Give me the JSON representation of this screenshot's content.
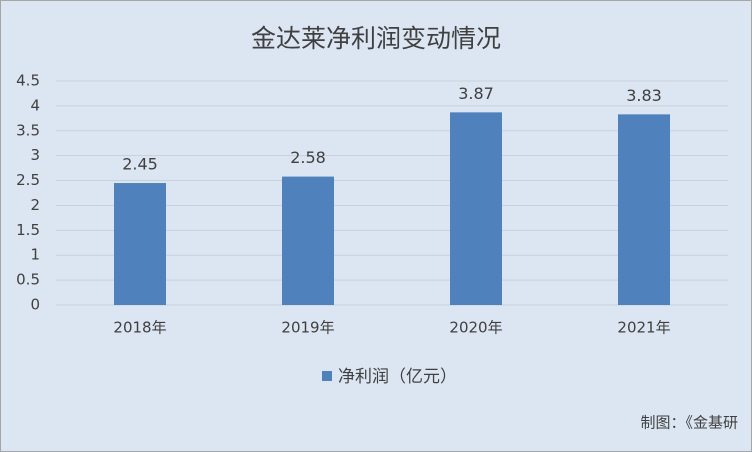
{
  "chart_data": {
    "type": "bar",
    "title": "金达莱净利润变动情况",
    "categories": [
      "2018年",
      "2019年",
      "2020年",
      "2021年"
    ],
    "series": [
      {
        "name": "净利润（亿元）",
        "color": "#4f81bd",
        "values": [
          2.45,
          2.58,
          3.87,
          3.83
        ]
      }
    ],
    "ylim": [
      0,
      4.5
    ],
    "yticks": [
      0,
      0.5,
      1,
      1.5,
      2,
      2.5,
      3,
      3.5,
      4,
      4.5
    ],
    "grid": true,
    "legend": "bottom",
    "source": "制图：《金基研"
  }
}
